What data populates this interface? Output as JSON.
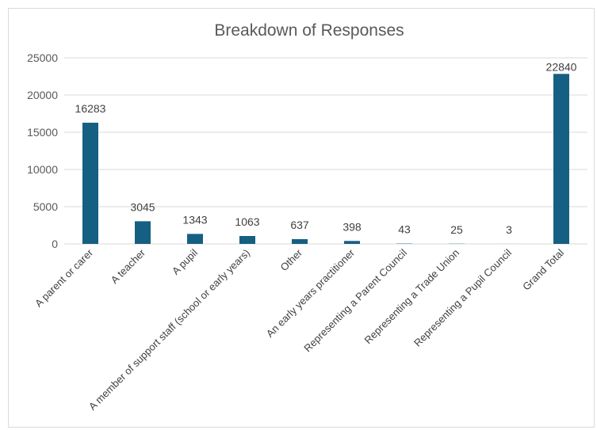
{
  "chart_data": {
    "type": "bar",
    "title": "Breakdown of Responses",
    "xlabel": "",
    "ylabel": "",
    "ylim": [
      0,
      25000
    ],
    "yticks": [
      0,
      5000,
      10000,
      15000,
      20000,
      25000
    ],
    "grid": true,
    "legend": "none",
    "bar_color": "#156082",
    "categories": [
      "A parent or carer",
      "A teacher",
      "A pupil",
      "A member of support staff (school or early years)",
      "Other",
      "An early years practitioner",
      "Representing a Parent Council",
      "Representing a Trade Union",
      "Representing a Pupil Council",
      "Grand Total"
    ],
    "values": [
      16283,
      3045,
      1343,
      1063,
      637,
      398,
      43,
      25,
      3,
      22840
    ]
  }
}
